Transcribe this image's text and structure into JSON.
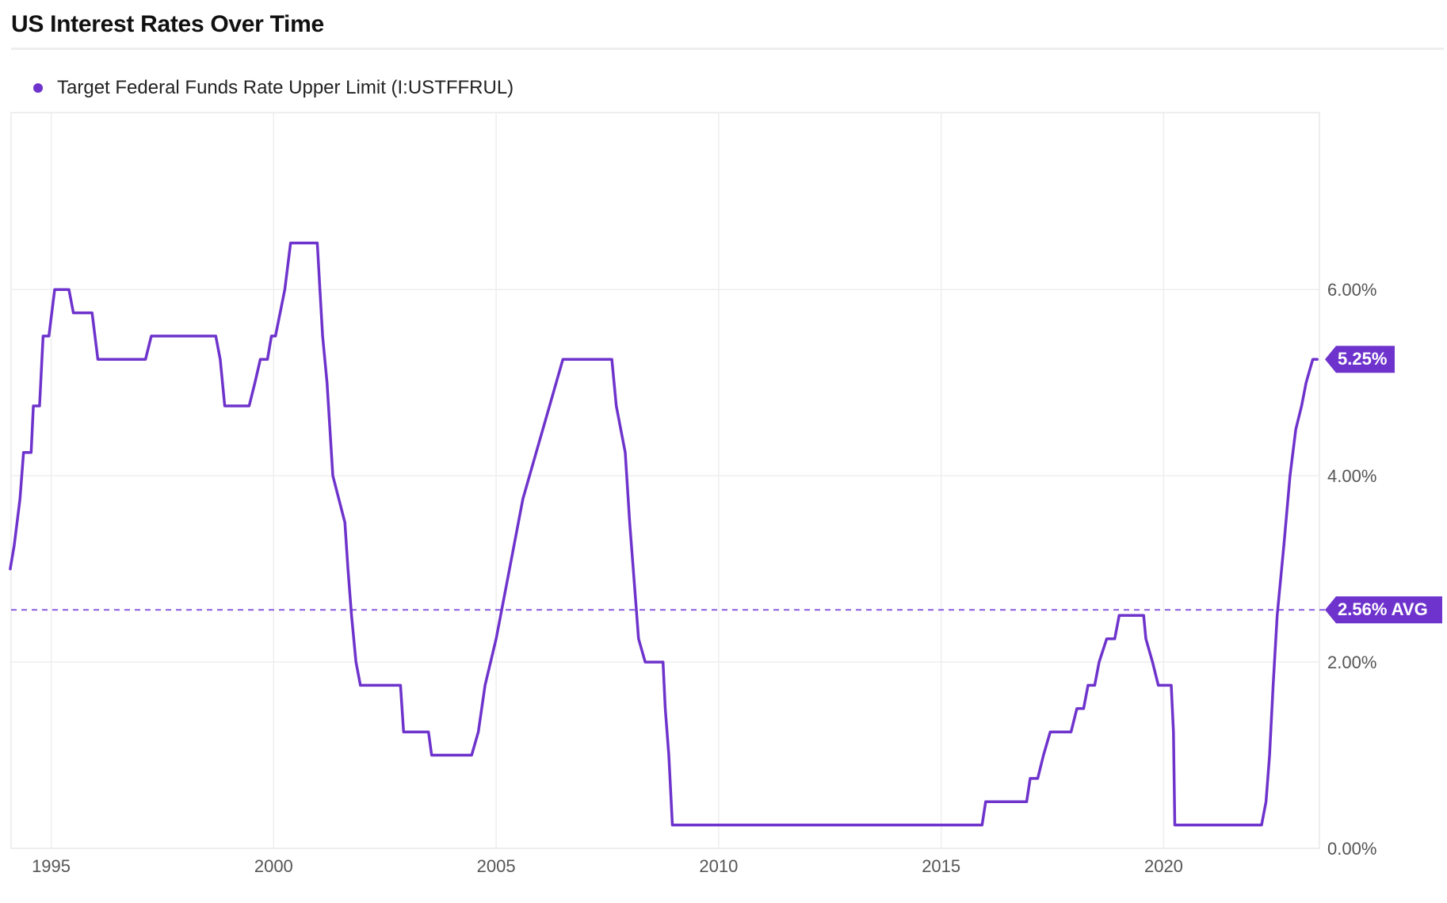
{
  "header": {
    "title": "US Interest Rates Over Time"
  },
  "colors": {
    "series": "#6e33cc",
    "grid": "#eeeeee",
    "avg_line": "#8c5ee0"
  },
  "chart_data": {
    "type": "line",
    "title": "US Interest Rates Over Time",
    "xlabel": "",
    "ylabel": "",
    "x_ticks": [
      "1995",
      "2000",
      "2005",
      "2010",
      "2015",
      "2020"
    ],
    "y_ticks": [
      "6.00%",
      "4.00%",
      "2.00%",
      "0.00%"
    ],
    "xlim": [
      1994.1,
      2023.5
    ],
    "ylim": [
      0,
      7.9
    ],
    "grid": true,
    "legend": "top-left",
    "y_axis_side": "right",
    "series": [
      {
        "name": "Target Federal Funds Rate Upper Limit (I:USTFFRUL)",
        "points": [
          [
            1994.08,
            3.0
          ],
          [
            1994.17,
            3.25
          ],
          [
            1994.3,
            3.75
          ],
          [
            1994.38,
            4.25
          ],
          [
            1994.55,
            4.25
          ],
          [
            1994.6,
            4.75
          ],
          [
            1994.74,
            4.75
          ],
          [
            1994.82,
            5.5
          ],
          [
            1994.95,
            5.5
          ],
          [
            1995.08,
            6.0
          ],
          [
            1995.4,
            6.0
          ],
          [
            1995.5,
            5.75
          ],
          [
            1995.92,
            5.75
          ],
          [
            1996.05,
            5.25
          ],
          [
            1997.12,
            5.25
          ],
          [
            1997.25,
            5.5
          ],
          [
            1998.7,
            5.5
          ],
          [
            1998.8,
            5.25
          ],
          [
            1998.9,
            4.75
          ],
          [
            1999.45,
            4.75
          ],
          [
            1999.58,
            5.0
          ],
          [
            1999.7,
            5.25
          ],
          [
            1999.86,
            5.25
          ],
          [
            1999.95,
            5.5
          ],
          [
            2000.04,
            5.5
          ],
          [
            2000.25,
            6.0
          ],
          [
            2000.38,
            6.5
          ],
          [
            2000.98,
            6.5
          ],
          [
            2001.04,
            6.0
          ],
          [
            2001.1,
            5.5
          ],
          [
            2001.2,
            5.0
          ],
          [
            2001.33,
            4.0
          ],
          [
            2001.6,
            3.5
          ],
          [
            2001.67,
            3.0
          ],
          [
            2001.75,
            2.5
          ],
          [
            2001.85,
            2.0
          ],
          [
            2001.95,
            1.75
          ],
          [
            2002.85,
            1.75
          ],
          [
            2002.92,
            1.25
          ],
          [
            2003.48,
            1.25
          ],
          [
            2003.55,
            1.0
          ],
          [
            2004.45,
            1.0
          ],
          [
            2004.6,
            1.25
          ],
          [
            2004.75,
            1.75
          ],
          [
            2005.0,
            2.25
          ],
          [
            2005.3,
            3.0
          ],
          [
            2005.6,
            3.75
          ],
          [
            2005.9,
            4.25
          ],
          [
            2006.2,
            4.75
          ],
          [
            2006.5,
            5.25
          ],
          [
            2007.6,
            5.25
          ],
          [
            2007.7,
            4.75
          ],
          [
            2007.9,
            4.25
          ],
          [
            2008.0,
            3.5
          ],
          [
            2008.08,
            3.0
          ],
          [
            2008.2,
            2.25
          ],
          [
            2008.35,
            2.0
          ],
          [
            2008.75,
            2.0
          ],
          [
            2008.8,
            1.5
          ],
          [
            2008.88,
            1.0
          ],
          [
            2008.96,
            0.25
          ],
          [
            2015.92,
            0.25
          ],
          [
            2016.0,
            0.5
          ],
          [
            2016.92,
            0.5
          ],
          [
            2017.0,
            0.75
          ],
          [
            2017.17,
            0.75
          ],
          [
            2017.3,
            1.0
          ],
          [
            2017.45,
            1.25
          ],
          [
            2017.92,
            1.25
          ],
          [
            2018.05,
            1.5
          ],
          [
            2018.2,
            1.5
          ],
          [
            2018.3,
            1.75
          ],
          [
            2018.45,
            1.75
          ],
          [
            2018.55,
            2.0
          ],
          [
            2018.72,
            2.25
          ],
          [
            2018.9,
            2.25
          ],
          [
            2019.0,
            2.5
          ],
          [
            2019.55,
            2.5
          ],
          [
            2019.6,
            2.25
          ],
          [
            2019.75,
            2.0
          ],
          [
            2019.88,
            1.75
          ],
          [
            2020.17,
            1.75
          ],
          [
            2020.22,
            1.25
          ],
          [
            2020.25,
            0.25
          ],
          [
            2022.2,
            0.25
          ],
          [
            2022.3,
            0.5
          ],
          [
            2022.38,
            1.0
          ],
          [
            2022.46,
            1.75
          ],
          [
            2022.55,
            2.5
          ],
          [
            2022.7,
            3.25
          ],
          [
            2022.84,
            4.0
          ],
          [
            2022.97,
            4.5
          ],
          [
            2023.1,
            4.75
          ],
          [
            2023.2,
            5.0
          ],
          [
            2023.35,
            5.25
          ],
          [
            2023.45,
            5.25
          ]
        ]
      }
    ],
    "current_value": 5.25,
    "current_label": "5.25%",
    "average": 2.56,
    "average_label": "2.56% AVG"
  }
}
